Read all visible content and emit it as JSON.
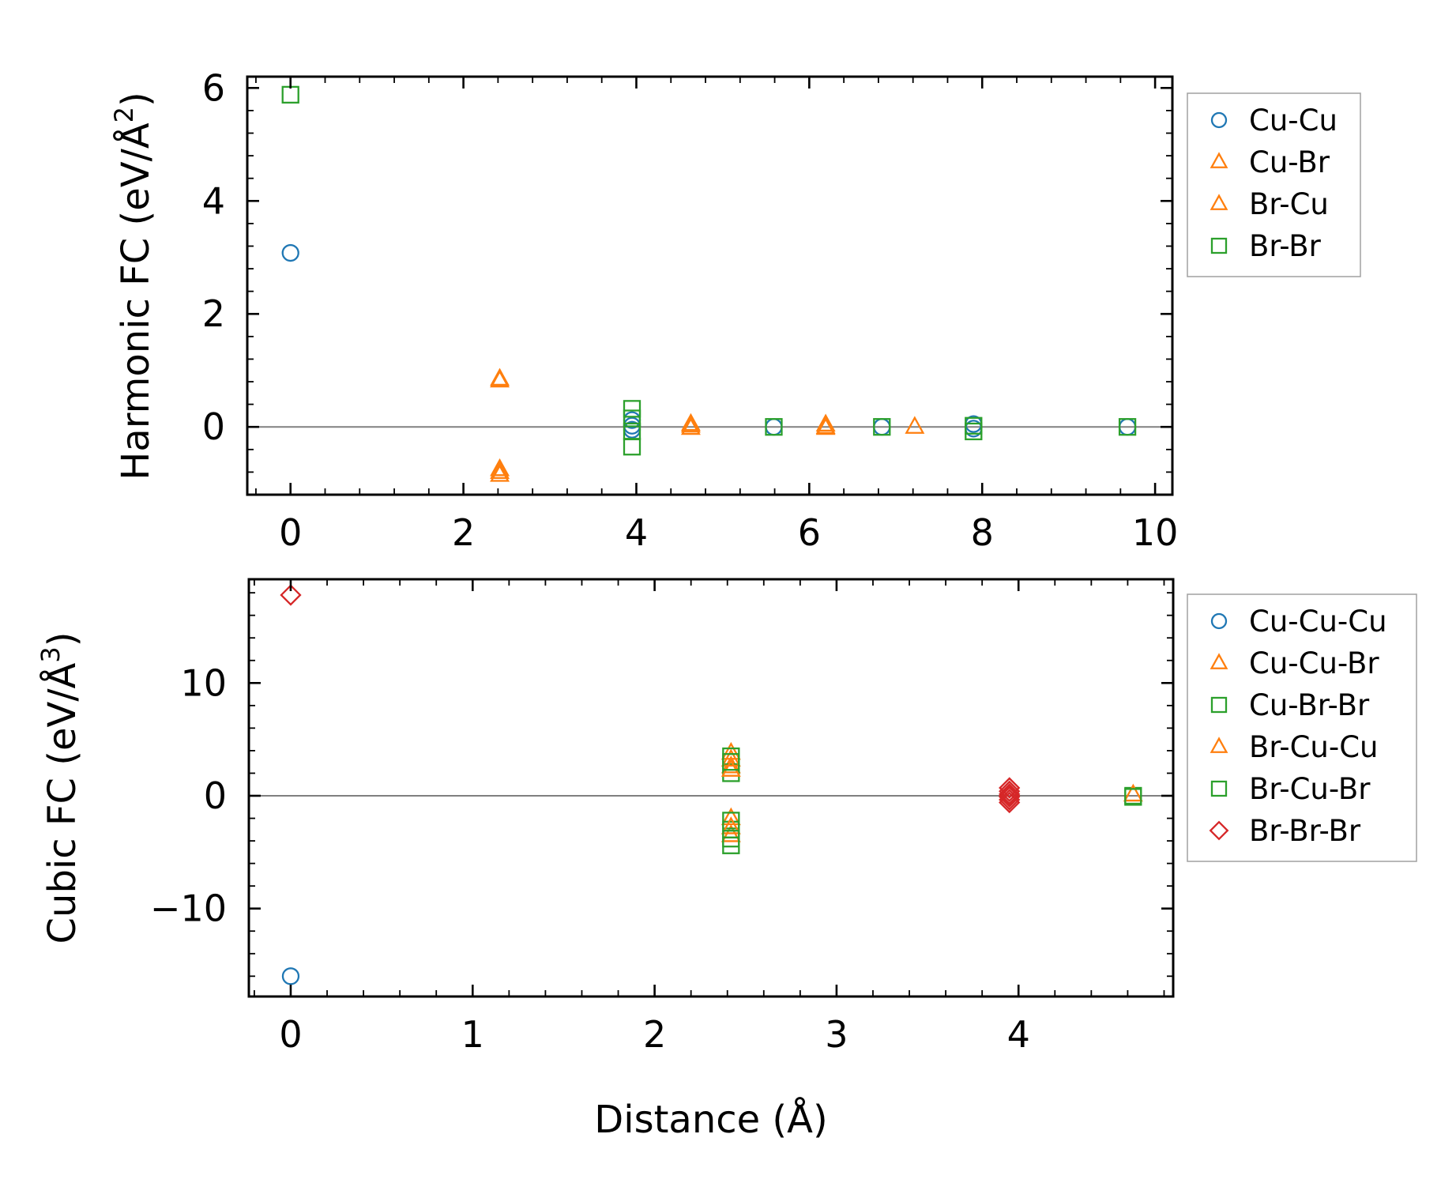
{
  "colors": {
    "blue": "#1f77b4",
    "orange": "#ff7f0e",
    "green": "#2ca02c",
    "red": "#d62728",
    "zero_line": "#808080"
  },
  "chart_data": [
    {
      "type": "scatter",
      "xlabel": "",
      "ylabel": "Harmonic FC (eV/Å",
      "ylabel_exp": "2",
      "xlim": [
        -0.5,
        10.2
      ],
      "ylim": [
        -1.2,
        6.2
      ],
      "xticks": [
        0,
        2,
        4,
        6,
        8,
        10
      ],
      "xtick_labels": [
        "0",
        "2",
        "4",
        "6",
        "8",
        "10"
      ],
      "yticks": [
        0,
        2,
        4,
        6
      ],
      "ytick_labels": [
        "0",
        "2",
        "4",
        "6"
      ],
      "x_minor_step": 0.4,
      "y_minor_step": 0.4,
      "zero_line": true,
      "legend": "outside-right",
      "series": [
        {
          "name": "Cu-Cu",
          "marker": "circle",
          "color": "blue",
          "points": [
            [
              0,
              3.08
            ],
            [
              3.95,
              0.12
            ],
            [
              3.95,
              0.02
            ],
            [
              3.95,
              -0.05
            ],
            [
              5.59,
              0.0
            ],
            [
              6.84,
              0.0
            ],
            [
              7.9,
              0.05
            ],
            [
              7.9,
              -0.03
            ],
            [
              9.68,
              0.0
            ]
          ]
        },
        {
          "name": "Cu-Br",
          "marker": "triangle",
          "color": "orange",
          "points": [
            [
              2.42,
              0.85
            ],
            [
              2.42,
              -0.75
            ],
            [
              2.42,
              -0.85
            ],
            [
              4.63,
              0.05
            ],
            [
              4.63,
              -0.02
            ],
            [
              6.19,
              0.04
            ],
            [
              6.19,
              -0.02
            ],
            [
              7.22,
              0.0
            ]
          ]
        },
        {
          "name": "Br-Cu",
          "marker": "triangle",
          "color": "orange",
          "points": [
            [
              2.42,
              0.82
            ],
            [
              2.42,
              -0.8
            ],
            [
              4.63,
              0.02
            ],
            [
              6.19,
              0.0
            ]
          ]
        },
        {
          "name": "Br-Br",
          "marker": "square",
          "color": "green",
          "points": [
            [
              0,
              5.88
            ],
            [
              3.95,
              0.32
            ],
            [
              3.95,
              0.15
            ],
            [
              3.95,
              -0.08
            ],
            [
              3.95,
              -0.35
            ],
            [
              5.59,
              0.0
            ],
            [
              6.84,
              0.0
            ],
            [
              7.9,
              0.02
            ],
            [
              7.9,
              -0.08
            ],
            [
              9.68,
              0.0
            ]
          ]
        }
      ]
    },
    {
      "type": "scatter",
      "xlabel": "Distance (Å)",
      "ylabel": "Cubic FC (eV/Å",
      "ylabel_exp": "3",
      "xlim": [
        -0.23,
        4.85
      ],
      "ylim": [
        -17.8,
        19.2
      ],
      "xticks": [
        0,
        1,
        2,
        3,
        4
      ],
      "xtick_labels": [
        "0",
        "1",
        "2",
        "3",
        "4"
      ],
      "yticks": [
        -10,
        0,
        10
      ],
      "ytick_labels": [
        "−10",
        "0",
        "10"
      ],
      "x_minor_step": 0.2,
      "y_minor_step": 2,
      "zero_line": true,
      "legend": "outside-right",
      "series": [
        {
          "name": "Cu-Cu-Cu",
          "marker": "circle",
          "color": "blue",
          "points": [
            [
              0,
              -16.0
            ]
          ]
        },
        {
          "name": "Cu-Cu-Br",
          "marker": "triangle",
          "color": "orange",
          "points": [
            [
              2.42,
              3.8
            ],
            [
              2.42,
              2.6
            ],
            [
              2.42,
              -2.0
            ],
            [
              2.42,
              -3.5
            ]
          ]
        },
        {
          "name": "Cu-Br-Br",
          "marker": "square",
          "color": "green",
          "points": [
            [
              2.42,
              3.5
            ],
            [
              2.42,
              2.0
            ],
            [
              2.42,
              -2.2
            ],
            [
              2.42,
              -3.0
            ],
            [
              2.42,
              -4.4
            ],
            [
              4.63,
              0.0
            ]
          ]
        },
        {
          "name": "Br-Cu-Cu",
          "marker": "triangle",
          "color": "orange",
          "points": [
            [
              2.42,
              3.2
            ],
            [
              2.42,
              2.3
            ],
            [
              2.42,
              -2.8
            ],
            [
              4.63,
              0.1
            ]
          ]
        },
        {
          "name": "Br-Cu-Br",
          "marker": "square",
          "color": "green",
          "points": [
            [
              2.42,
              3.0
            ],
            [
              2.42,
              -3.8
            ],
            [
              4.63,
              -0.1
            ]
          ]
        },
        {
          "name": "Br-Br-Br",
          "marker": "diamond",
          "color": "red",
          "points": [
            [
              0,
              17.8
            ],
            [
              3.95,
              0.7
            ],
            [
              3.95,
              0.4
            ],
            [
              3.95,
              0.15
            ],
            [
              3.95,
              -0.1
            ],
            [
              3.95,
              -0.35
            ],
            [
              3.95,
              -0.6
            ],
            [
              3.95,
              0.0
            ]
          ]
        }
      ]
    }
  ]
}
